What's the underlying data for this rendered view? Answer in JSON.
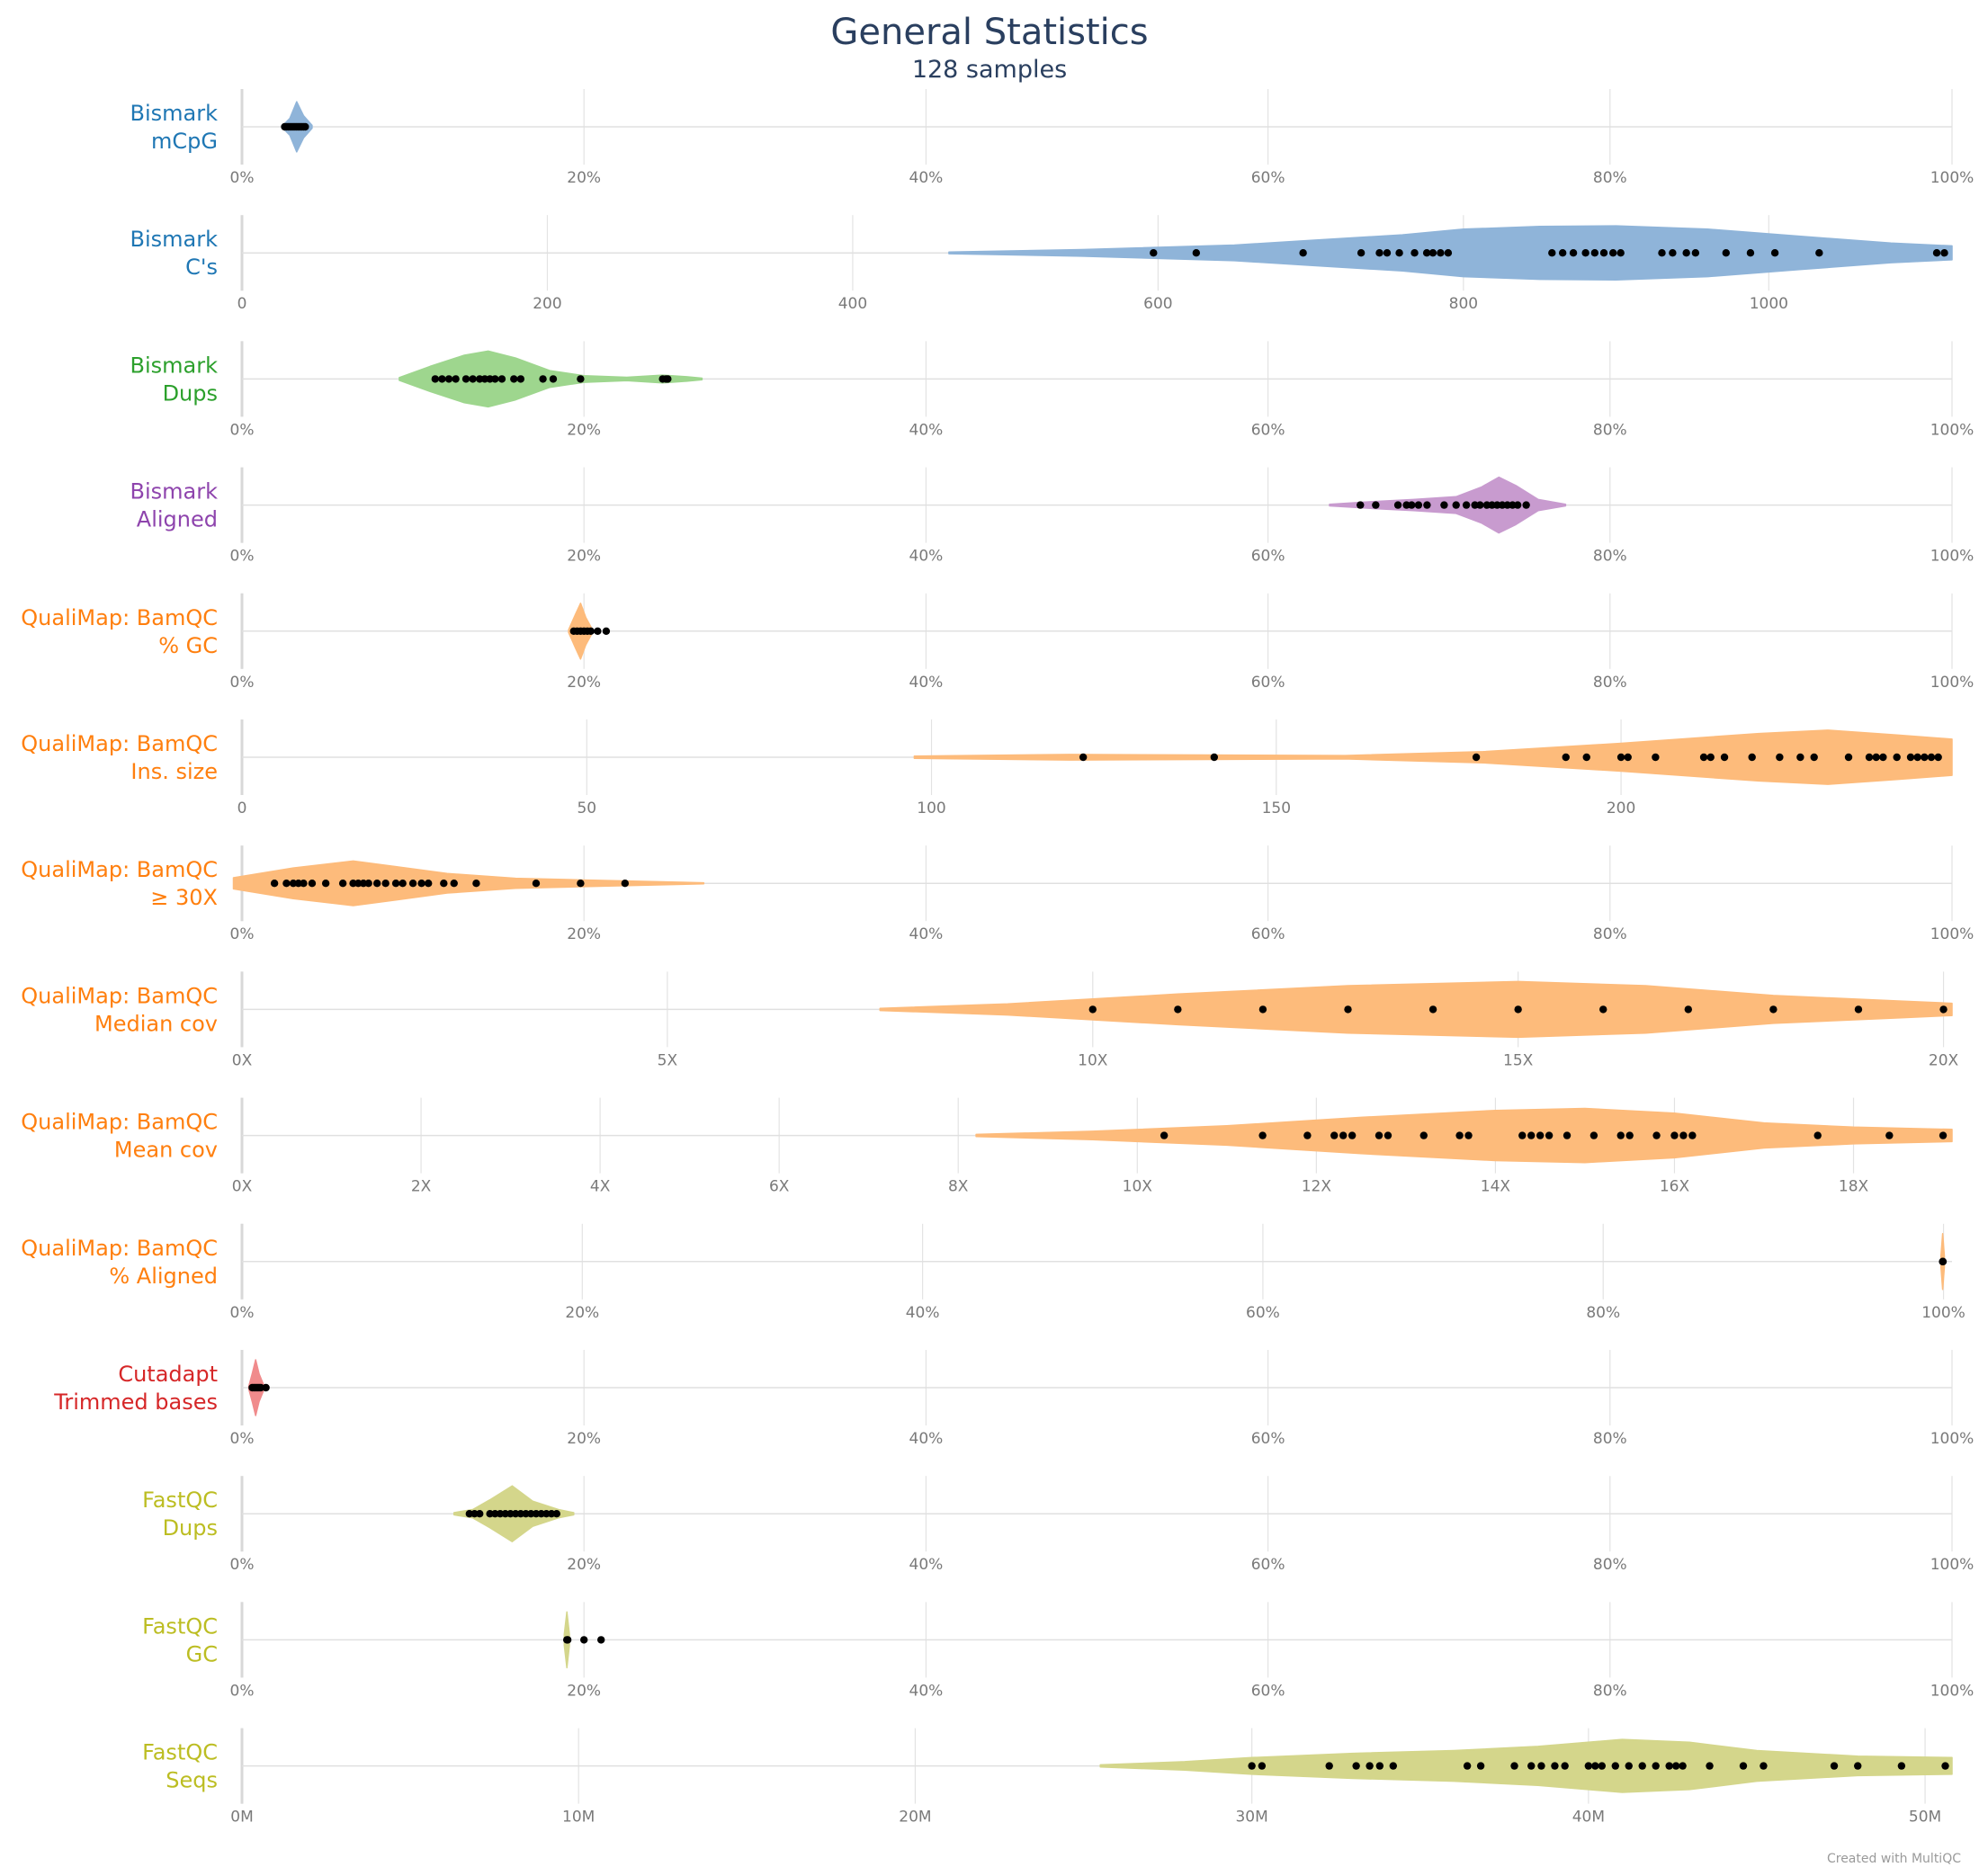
{
  "title": "General Statistics",
  "subtitle": "128 samples",
  "credit": "Created with MultiQC",
  "chart_data": {
    "type": "violin",
    "rows": [
      {
        "label": [
          "Bismark",
          "mCpG"
        ],
        "color": "#1f77b4",
        "fill": "#8fb4d9",
        "range": [
          0,
          100
        ],
        "ticks": [
          0,
          20,
          40,
          60,
          80,
          100
        ],
        "tick_labels": [
          "0%",
          "20%",
          "40%",
          "60%",
          "80%",
          "100%"
        ],
        "violin": [
          [
            2.4,
            0.05
          ],
          [
            2.8,
            0.3
          ],
          [
            3.2,
            0.9
          ],
          [
            3.6,
            0.4
          ],
          [
            4.1,
            0.05
          ]
        ],
        "points": [
          2.5,
          2.6,
          2.7,
          2.8,
          2.9,
          3.0,
          3.1,
          3.2,
          3.3,
          3.4,
          3.5,
          3.6,
          3.7
        ]
      },
      {
        "label": [
          "Bismark",
          "C's"
        ],
        "color": "#1f77b4",
        "fill": "#8fb4d9",
        "range": [
          0,
          1120
        ],
        "ticks": [
          0,
          200,
          400,
          600,
          800,
          1000
        ],
        "tick_labels": [
          "0",
          "200",
          "400",
          "600",
          "800",
          "1000"
        ],
        "violin": [
          [
            463,
            0.03
          ],
          [
            550,
            0.12
          ],
          [
            650,
            0.28
          ],
          [
            700,
            0.45
          ],
          [
            760,
            0.65
          ],
          [
            800,
            0.85
          ],
          [
            850,
            0.95
          ],
          [
            900,
            0.97
          ],
          [
            960,
            0.85
          ],
          [
            1020,
            0.6
          ],
          [
            1080,
            0.35
          ],
          [
            1120,
            0.25
          ]
        ],
        "points": [
          597,
          625,
          695,
          733,
          745,
          750,
          758,
          768,
          776,
          780,
          785,
          790,
          858,
          865,
          872,
          880,
          886,
          892,
          898,
          903,
          930,
          937,
          946,
          952,
          972,
          988,
          1004,
          1033,
          1110,
          1115
        ]
      },
      {
        "label": [
          "Bismark",
          "Dups"
        ],
        "color": "#2ca02c",
        "fill": "#9ed68e",
        "range": [
          0,
          100
        ],
        "ticks": [
          0,
          20,
          40,
          60,
          80,
          100
        ],
        "tick_labels": [
          "0%",
          "20%",
          "40%",
          "60%",
          "80%",
          "100%"
        ],
        "violin": [
          [
            9.2,
            0.05
          ],
          [
            11,
            0.45
          ],
          [
            13,
            0.85
          ],
          [
            14.4,
            1.0
          ],
          [
            16,
            0.75
          ],
          [
            18,
            0.3
          ],
          [
            20,
            0.12
          ],
          [
            22.5,
            0.06
          ],
          [
            24.6,
            0.14
          ],
          [
            26,
            0.08
          ],
          [
            26.9,
            0.03
          ]
        ],
        "points": [
          11.3,
          11.7,
          12.1,
          12.5,
          13.1,
          13.5,
          13.9,
          14.2,
          14.5,
          14.8,
          15.2,
          15.9,
          16.3,
          17.6,
          18.2,
          19.8,
          24.6,
          24.8,
          24.9
        ]
      },
      {
        "label": [
          "Bismark",
          "Aligned"
        ],
        "color": "#8e44ad",
        "fill": "#c89bcf",
        "range": [
          0,
          100
        ],
        "ticks": [
          0,
          20,
          40,
          60,
          80,
          100
        ],
        "tick_labels": [
          "0%",
          "20%",
          "40%",
          "60%",
          "80%",
          "100%"
        ],
        "violin": [
          [
            63.6,
            0.03
          ],
          [
            66,
            0.12
          ],
          [
            68.5,
            0.2
          ],
          [
            71,
            0.3
          ],
          [
            72.5,
            0.65
          ],
          [
            73.5,
            1.0
          ],
          [
            74.5,
            0.7
          ],
          [
            75.8,
            0.2
          ],
          [
            77.4,
            0.03
          ]
        ],
        "points": [
          65.4,
          66.3,
          67.6,
          68.1,
          68.4,
          68.8,
          69.3,
          70.3,
          71.0,
          71.6,
          72.1,
          72.4,
          72.8,
          73.1,
          73.4,
          73.7,
          74.0,
          74.3,
          74.6,
          75.1
        ]
      },
      {
        "label": [
          "QualiMap: BamQC",
          "% GC"
        ],
        "color": "#ff7f0e",
        "fill": "#fdbb7b",
        "range": [
          0,
          100
        ],
        "ticks": [
          0,
          20,
          40,
          60,
          80,
          100
        ],
        "tick_labels": [
          "0%",
          "20%",
          "40%",
          "60%",
          "80%",
          "100%"
        ],
        "violin": [
          [
            19.1,
            0.05
          ],
          [
            19.5,
            0.6
          ],
          [
            19.8,
            1.0
          ],
          [
            20.1,
            0.5
          ],
          [
            20.5,
            0.05
          ]
        ],
        "points": [
          19.4,
          19.6,
          19.8,
          20.0,
          20.2,
          20.4,
          20.8,
          21.3
        ]
      },
      {
        "label": [
          "QualiMap: BamQC",
          "Ins. size"
        ],
        "color": "#ff7f0e",
        "fill": "#fdbb7b",
        "range": [
          0,
          248
        ],
        "ticks": [
          0,
          50,
          100,
          150,
          200
        ],
        "tick_labels": [
          "0",
          "50",
          "100",
          "150",
          "200"
        ],
        "violin": [
          [
            97.5,
            0.04
          ],
          [
            120,
            0.1
          ],
          [
            140,
            0.08
          ],
          [
            160,
            0.06
          ],
          [
            180,
            0.2
          ],
          [
            200,
            0.5
          ],
          [
            220,
            0.85
          ],
          [
            230,
            0.97
          ],
          [
            240,
            0.8
          ],
          [
            248,
            0.65
          ]
        ],
        "points": [
          122,
          141,
          179,
          192,
          195,
          200,
          201,
          205,
          212,
          213,
          215,
          219,
          223,
          226,
          228,
          233,
          236,
          237,
          238,
          240,
          242,
          243,
          244,
          245,
          246
        ]
      },
      {
        "label": [
          "QualiMap: BamQC",
          "≥ 30X"
        ],
        "color": "#ff7f0e",
        "fill": "#fdbb7b",
        "range": [
          0,
          100
        ],
        "ticks": [
          0,
          20,
          40,
          60,
          80,
          100
        ],
        "tick_labels": [
          "0%",
          "20%",
          "40%",
          "60%",
          "80%",
          "100%"
        ],
        "violin": [
          [
            -0.5,
            0.2
          ],
          [
            3,
            0.55
          ],
          [
            6.5,
            0.8
          ],
          [
            9,
            0.6
          ],
          [
            12,
            0.35
          ],
          [
            16,
            0.18
          ],
          [
            20,
            0.12
          ],
          [
            24,
            0.06
          ],
          [
            27,
            0.02
          ]
        ],
        "points": [
          1.9,
          2.6,
          3.0,
          3.3,
          3.6,
          4.1,
          4.9,
          5.9,
          6.5,
          6.8,
          7.1,
          7.4,
          7.9,
          8.4,
          9.0,
          9.4,
          10.0,
          10.5,
          10.9,
          11.8,
          12.4,
          13.7,
          17.2,
          19.8,
          22.4
        ]
      },
      {
        "label": [
          "QualiMap: BamQC",
          "Median cov"
        ],
        "color": "#ff7f0e",
        "fill": "#fdbb7b",
        "range": [
          0,
          20.1
        ],
        "ticks": [
          0,
          5,
          10,
          15,
          20
        ],
        "tick_labels": [
          "0X",
          "5X",
          "10X",
          "15X",
          "20X"
        ],
        "violin": [
          [
            7.5,
            0.04
          ],
          [
            9,
            0.2
          ],
          [
            11,
            0.55
          ],
          [
            13,
            0.85
          ],
          [
            15,
            1.0
          ],
          [
            16.5,
            0.85
          ],
          [
            18,
            0.5
          ],
          [
            19.5,
            0.3
          ],
          [
            20.1,
            0.22
          ]
        ],
        "points": [
          10,
          11,
          12,
          13,
          14,
          15,
          16,
          17,
          18,
          19,
          20
        ]
      },
      {
        "label": [
          "QualiMap: BamQC",
          "Mean cov"
        ],
        "color": "#ff7f0e",
        "fill": "#fdbb7b",
        "range": [
          0,
          19.1
        ],
        "ticks": [
          0,
          2,
          4,
          6,
          8,
          10,
          12,
          14,
          16,
          18
        ],
        "tick_labels": [
          "0X",
          "2X",
          "4X",
          "6X",
          "8X",
          "10X",
          "12X",
          "14X",
          "16X",
          "18X"
        ],
        "violin": [
          [
            8.2,
            0.04
          ],
          [
            9.5,
            0.15
          ],
          [
            11,
            0.35
          ],
          [
            12.5,
            0.65
          ],
          [
            14,
            0.9
          ],
          [
            15,
            0.97
          ],
          [
            16,
            0.8
          ],
          [
            17,
            0.45
          ],
          [
            18,
            0.3
          ],
          [
            19.1,
            0.22
          ]
        ],
        "points": [
          10.3,
          11.4,
          11.9,
          12.2,
          12.3,
          12.4,
          12.7,
          12.8,
          13.2,
          13.6,
          13.7,
          14.3,
          14.4,
          14.5,
          14.6,
          14.8,
          15.1,
          15.4,
          15.5,
          15.8,
          16.0,
          16.1,
          16.2,
          17.6,
          18.4,
          19.0
        ]
      },
      {
        "label": [
          "QualiMap: BamQC",
          "% Aligned"
        ],
        "color": "#ff7f0e",
        "fill": "#fdbb7b",
        "range": [
          0,
          100.5
        ],
        "ticks": [
          0,
          20,
          40,
          60,
          80,
          100
        ],
        "tick_labels": [
          "0%",
          "20%",
          "40%",
          "60%",
          "80%",
          "100%"
        ],
        "violin": [
          [
            99.85,
            0.2
          ],
          [
            99.95,
            1.0
          ],
          [
            100.05,
            0.2
          ]
        ],
        "points": [
          99.95,
          99.96,
          99.97
        ]
      },
      {
        "label": [
          "Cutadapt",
          "Trimmed bases"
        ],
        "color": "#d62728",
        "fill": "#f08b8c",
        "range": [
          0,
          100
        ],
        "ticks": [
          0,
          20,
          40,
          60,
          80,
          100
        ],
        "tick_labels": [
          "0%",
          "20%",
          "40%",
          "60%",
          "80%",
          "100%"
        ],
        "violin": [
          [
            0.4,
            0.05
          ],
          [
            0.6,
            0.5
          ],
          [
            0.8,
            1.0
          ],
          [
            1.0,
            0.5
          ],
          [
            1.3,
            0.05
          ]
        ],
        "points": [
          0.6,
          0.7,
          0.8,
          0.9,
          1.0,
          1.1,
          1.4
        ]
      },
      {
        "label": [
          "FastQC",
          "Dups"
        ],
        "color": "#bcbd22",
        "fill": "#d4d68b",
        "range": [
          0,
          100
        ],
        "ticks": [
          0,
          20,
          40,
          60,
          80,
          100
        ],
        "tick_labels": [
          "0%",
          "20%",
          "40%",
          "60%",
          "80%",
          "100%"
        ],
        "violin": [
          [
            12.4,
            0.04
          ],
          [
            13.5,
            0.15
          ],
          [
            14.5,
            0.5
          ],
          [
            15.8,
            1.0
          ],
          [
            17,
            0.45
          ],
          [
            18.5,
            0.15
          ],
          [
            19.4,
            0.04
          ]
        ],
        "points": [
          13.3,
          13.6,
          13.9,
          14.5,
          14.8,
          15.1,
          15.4,
          15.7,
          16.0,
          16.3,
          16.6,
          16.9,
          17.2,
          17.5,
          17.8,
          18.1,
          18.4
        ]
      },
      {
        "label": [
          "FastQC",
          "GC"
        ],
        "color": "#bcbd22",
        "fill": "#d4d68b",
        "range": [
          0,
          100
        ],
        "ticks": [
          0,
          20,
          40,
          60,
          80,
          100
        ],
        "tick_labels": [
          "0%",
          "20%",
          "40%",
          "60%",
          "80%",
          "100%"
        ],
        "violin": [
          [
            18.85,
            0.2
          ],
          [
            19.0,
            1.0
          ],
          [
            19.15,
            0.2
          ]
        ],
        "points": [
          19.0,
          19.05,
          20.0,
          21.0
        ]
      },
      {
        "label": [
          "FastQC",
          "Seqs"
        ],
        "color": "#bcbd22",
        "fill": "#d4d68b",
        "range": [
          0,
          50.8
        ],
        "ticks": [
          0,
          10,
          20,
          30,
          40,
          50
        ],
        "tick_labels": [
          "0M",
          "10M",
          "20M",
          "30M",
          "40M",
          "50M"
        ],
        "violin": [
          [
            25.5,
            0.04
          ],
          [
            28,
            0.15
          ],
          [
            30,
            0.3
          ],
          [
            33,
            0.45
          ],
          [
            36,
            0.55
          ],
          [
            38.5,
            0.7
          ],
          [
            41,
            0.95
          ],
          [
            43,
            0.85
          ],
          [
            45,
            0.55
          ],
          [
            48,
            0.35
          ],
          [
            50.8,
            0.3
          ]
        ],
        "points": [
          30.0,
          30.3,
          32.3,
          33.1,
          33.5,
          33.8,
          34.2,
          36.4,
          36.8,
          37.8,
          38.3,
          38.6,
          39.0,
          39.3,
          40.0,
          40.2,
          40.4,
          40.8,
          41.2,
          41.6,
          42.0,
          42.4,
          42.6,
          42.8,
          43.6,
          44.6,
          45.2,
          47.3,
          48.0,
          49.3,
          50.6
        ]
      }
    ]
  }
}
